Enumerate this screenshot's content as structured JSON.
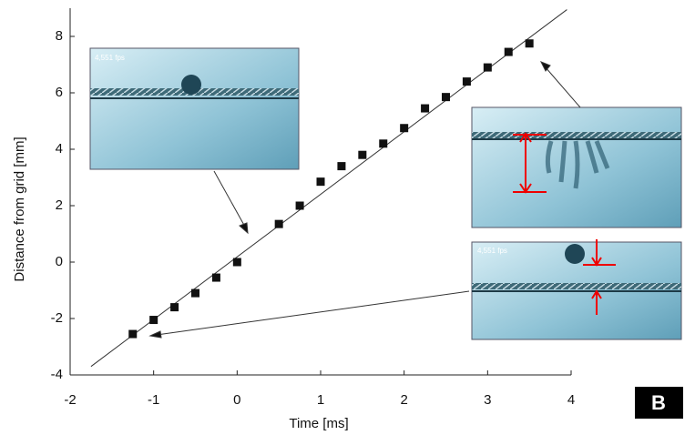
{
  "chart_data": {
    "type": "scatter",
    "xlabel": "Time [ms]",
    "ylabel": "Distance from grid [mm]",
    "x": [
      -1.25,
      -1,
      -0.75,
      -0.5,
      -0.25,
      0,
      0.5,
      0.75,
      1,
      1.25,
      1.5,
      1.75,
      2,
      2.25,
      2.5,
      2.75,
      3,
      3.25,
      3.5
    ],
    "values": [
      -2.55,
      -2.05,
      -1.6,
      -1.1,
      -0.55,
      0,
      1.35,
      2.0,
      2.85,
      3.4,
      3.8,
      4.2,
      4.75,
      5.45,
      5.85,
      6.4,
      6.9,
      7.45,
      7.75
    ],
    "color": "#111111",
    "fit": {
      "x": [
        -1.75,
        3.95
      ],
      "values": [
        -3.7,
        8.95
      ],
      "color": "#333333"
    },
    "xlim": [
      -2,
      4
    ],
    "ylim": [
      -4,
      9
    ],
    "xticks": [
      -2,
      -1,
      0,
      1,
      2,
      3,
      4
    ],
    "yticks": [
      -4,
      -2,
      0,
      2,
      4,
      6,
      8
    ],
    "inset_labels": [
      "4,551 fps",
      "4,551 fps"
    ],
    "panel_label": "B"
  }
}
